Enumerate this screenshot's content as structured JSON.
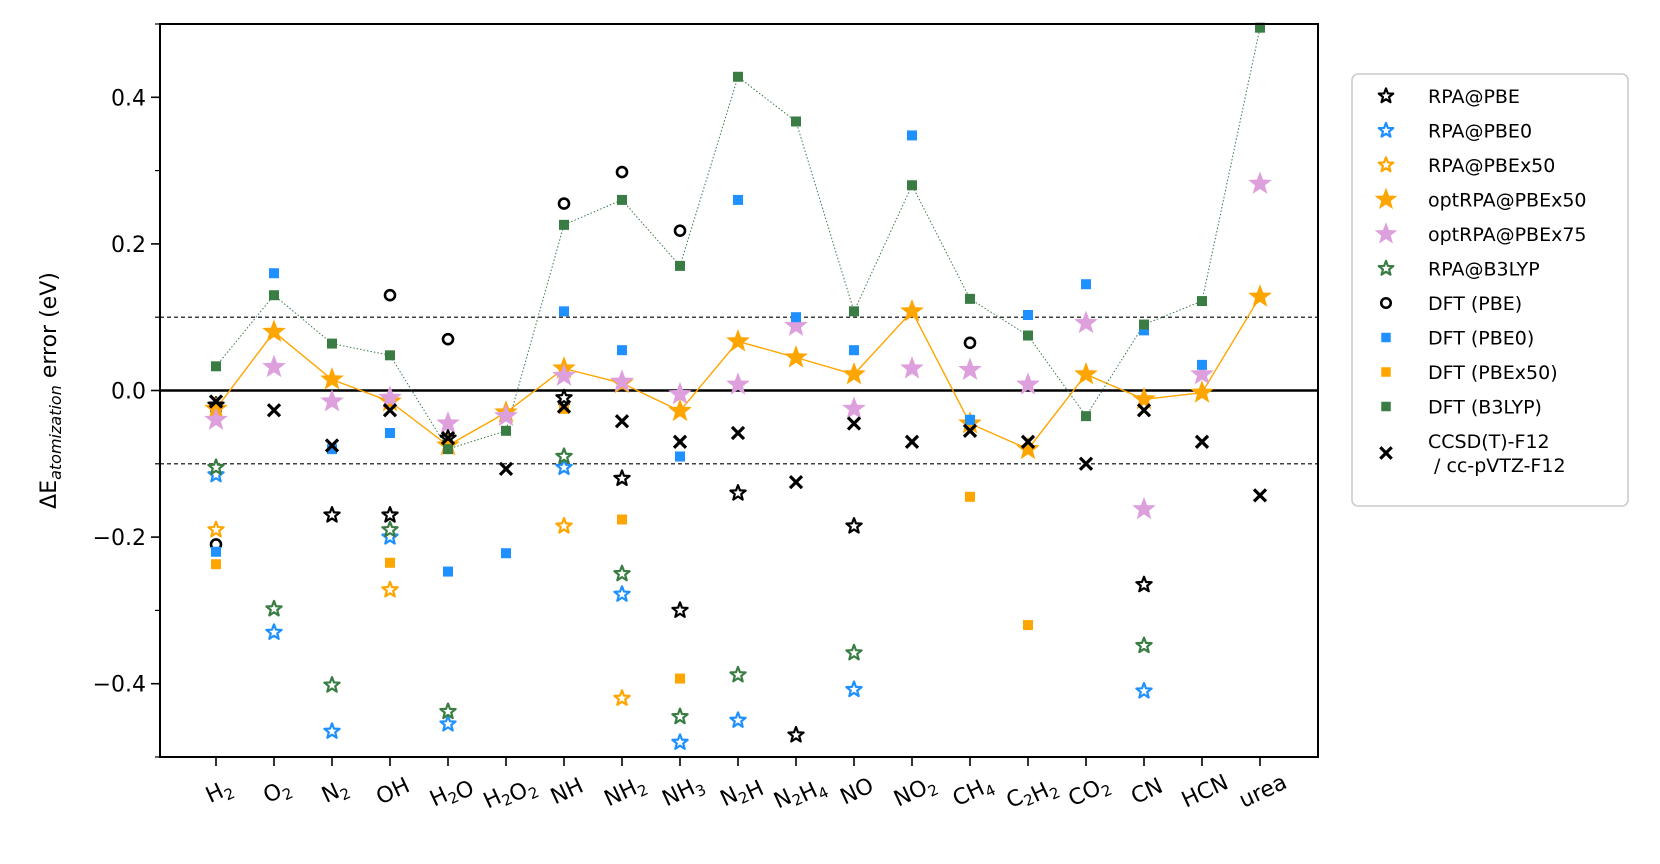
{
  "chart_data": {
    "type": "scatter",
    "title": "",
    "xlabel": "",
    "ylabel": {
      "prefix": "ΔE",
      "subscript": "atomization",
      "suffix": " error (eV)"
    },
    "ylim": [
      -0.5,
      0.5
    ],
    "yticks": [
      -0.4,
      -0.2,
      0.0,
      0.2,
      0.4
    ],
    "ytick_labels": [
      "−0.4",
      "−0.2",
      "0.0",
      "0.2",
      "0.4"
    ],
    "yminor": [
      -0.5,
      -0.3,
      -0.1,
      0.1,
      0.3,
      0.5
    ],
    "reference_lines": [
      0.0,
      0.1,
      -0.1
    ],
    "categories": [
      "H₂",
      "O₂",
      "N₂",
      "OH",
      "H₂O",
      "H₂O₂",
      "NH",
      "NH₂",
      "NH₃",
      "N₂H",
      "N₂H₄",
      "NO",
      "NO₂",
      "CH₄",
      "C₂H₂",
      "CO₂",
      "CN",
      "HCN",
      "urea"
    ],
    "category_labels": [
      [
        {
          "t": "H"
        },
        {
          "t": "2",
          "s": 1
        }
      ],
      [
        {
          "t": "O"
        },
        {
          "t": "2",
          "s": 1
        }
      ],
      [
        {
          "t": "N"
        },
        {
          "t": "2",
          "s": 1
        }
      ],
      [
        {
          "t": "OH"
        }
      ],
      [
        {
          "t": "H"
        },
        {
          "t": "2",
          "s": 1
        },
        {
          "t": "O"
        }
      ],
      [
        {
          "t": "H"
        },
        {
          "t": "2",
          "s": 1
        },
        {
          "t": "O"
        },
        {
          "t": "2",
          "s": 1
        }
      ],
      [
        {
          "t": "NH"
        }
      ],
      [
        {
          "t": "NH"
        },
        {
          "t": "2",
          "s": 1
        }
      ],
      [
        {
          "t": "NH"
        },
        {
          "t": "3",
          "s": 1
        }
      ],
      [
        {
          "t": "N"
        },
        {
          "t": "2",
          "s": 1
        },
        {
          "t": "H"
        }
      ],
      [
        {
          "t": "N"
        },
        {
          "t": "2",
          "s": 1
        },
        {
          "t": "H"
        },
        {
          "t": "4",
          "s": 1
        }
      ],
      [
        {
          "t": "NO"
        }
      ],
      [
        {
          "t": "NO"
        },
        {
          "t": "2",
          "s": 1
        }
      ],
      [
        {
          "t": "CH"
        },
        {
          "t": "4",
          "s": 1
        }
      ],
      [
        {
          "t": "C"
        },
        {
          "t": "2",
          "s": 1
        },
        {
          "t": "H"
        },
        {
          "t": "2",
          "s": 1
        }
      ],
      [
        {
          "t": "CO"
        },
        {
          "t": "2",
          "s": 1
        }
      ],
      [
        {
          "t": "CN"
        }
      ],
      [
        {
          "t": "HCN"
        }
      ],
      [
        {
          "t": "urea"
        }
      ]
    ],
    "series": [
      {
        "name": "RPA@PBE",
        "marker": "star-open",
        "color": "#000000",
        "size": 8,
        "values": [
          -0.02,
          null,
          -0.17,
          -0.17,
          -0.065,
          null,
          -0.01,
          -0.12,
          -0.3,
          -0.14,
          -0.47,
          -0.185,
          null,
          null,
          null,
          null,
          -0.265,
          null,
          null
        ]
      },
      {
        "name": "RPA@PBE0",
        "marker": "star-open",
        "color": "#1e90ff",
        "size": 8,
        "values": [
          -0.115,
          -0.33,
          -0.465,
          -0.2,
          -0.455,
          null,
          -0.105,
          -0.278,
          -0.48,
          -0.45,
          null,
          -0.408,
          null,
          null,
          null,
          null,
          -0.41,
          null,
          null
        ]
      },
      {
        "name": "RPA@PBEx50",
        "marker": "star-open",
        "color": "#ffa500",
        "size": 8,
        "values": [
          -0.19,
          null,
          null,
          -0.272,
          null,
          null,
          -0.185,
          -0.42,
          null,
          null,
          null,
          null,
          null,
          null,
          null,
          null,
          null,
          null,
          null
        ]
      },
      {
        "name": "optRPA@PBEx50",
        "marker": "star",
        "color": "#ffa500",
        "size": 11,
        "line": true,
        "values": [
          -0.025,
          0.08,
          0.015,
          -0.015,
          -0.075,
          -0.03,
          0.03,
          0.01,
          -0.028,
          0.067,
          0.045,
          0.022,
          0.108,
          -0.045,
          -0.08,
          0.022,
          -0.012,
          -0.003,
          0.128
        ]
      },
      {
        "name": "optRPA@PBEx75",
        "marker": "star",
        "color": "#dda0dd",
        "size": 11,
        "values": [
          -0.04,
          0.032,
          -0.015,
          -0.01,
          -0.045,
          -0.035,
          0.02,
          0.012,
          -0.005,
          0.008,
          0.088,
          -0.025,
          0.03,
          0.028,
          0.008,
          0.092,
          -0.162,
          0.022,
          0.282
        ]
      },
      {
        "name": "RPA@B3LYP",
        "marker": "star-open",
        "color": "#3a7d44",
        "size": 8,
        "values": [
          -0.105,
          -0.298,
          -0.402,
          -0.19,
          -0.438,
          null,
          -0.09,
          -0.25,
          -0.445,
          -0.388,
          null,
          -0.358,
          null,
          null,
          null,
          null,
          -0.348,
          null,
          null
        ]
      },
      {
        "name": "DFT (PBE)",
        "marker": "circle-open",
        "color": "#000000",
        "size": 5,
        "values": [
          -0.21,
          null,
          null,
          0.13,
          0.07,
          null,
          0.255,
          0.298,
          0.218,
          null,
          null,
          null,
          null,
          0.065,
          null,
          null,
          null,
          null,
          null
        ]
      },
      {
        "name": "DFT (PBE0)",
        "marker": "square",
        "color": "#1e90ff",
        "size": 5,
        "values": [
          -0.22,
          0.16,
          -0.08,
          -0.058,
          -0.247,
          -0.222,
          0.108,
          0.055,
          -0.09,
          0.26,
          0.1,
          0.055,
          0.348,
          -0.04,
          0.103,
          0.145,
          0.082,
          0.035,
          null
        ]
      },
      {
        "name": "DFT (PBEx50)",
        "marker": "square",
        "color": "#ffa500",
        "size": 5,
        "values": [
          -0.237,
          null,
          null,
          -0.235,
          null,
          null,
          -0.025,
          -0.176,
          -0.393,
          null,
          null,
          null,
          null,
          -0.145,
          -0.32,
          null,
          null,
          null,
          null
        ]
      },
      {
        "name": "DFT (B3LYP)",
        "marker": "square",
        "color": "#3a7d44",
        "size": 5,
        "line": true,
        "dotted": true,
        "values": [
          0.033,
          0.13,
          0.064,
          0.048,
          -0.08,
          -0.055,
          0.226,
          0.26,
          0.17,
          0.428,
          0.367,
          0.108,
          0.28,
          0.125,
          0.075,
          -0.035,
          0.09,
          0.122,
          0.495
        ]
      },
      {
        "name": "CCSD(T)-F12 / cc-pVTZ-F12",
        "label_lines": [
          "CCSD(T)-F12",
          " / cc-pVTZ-F12"
        ],
        "marker": "x",
        "color": "#000000",
        "size": 6,
        "values": [
          -0.015,
          -0.027,
          -0.075,
          -0.027,
          -0.065,
          -0.107,
          -0.022,
          -0.042,
          -0.07,
          -0.058,
          -0.125,
          -0.045,
          -0.07,
          -0.055,
          -0.07,
          -0.1,
          -0.027,
          -0.07,
          -0.143
        ]
      }
    ],
    "legend": {
      "position": "right"
    }
  }
}
